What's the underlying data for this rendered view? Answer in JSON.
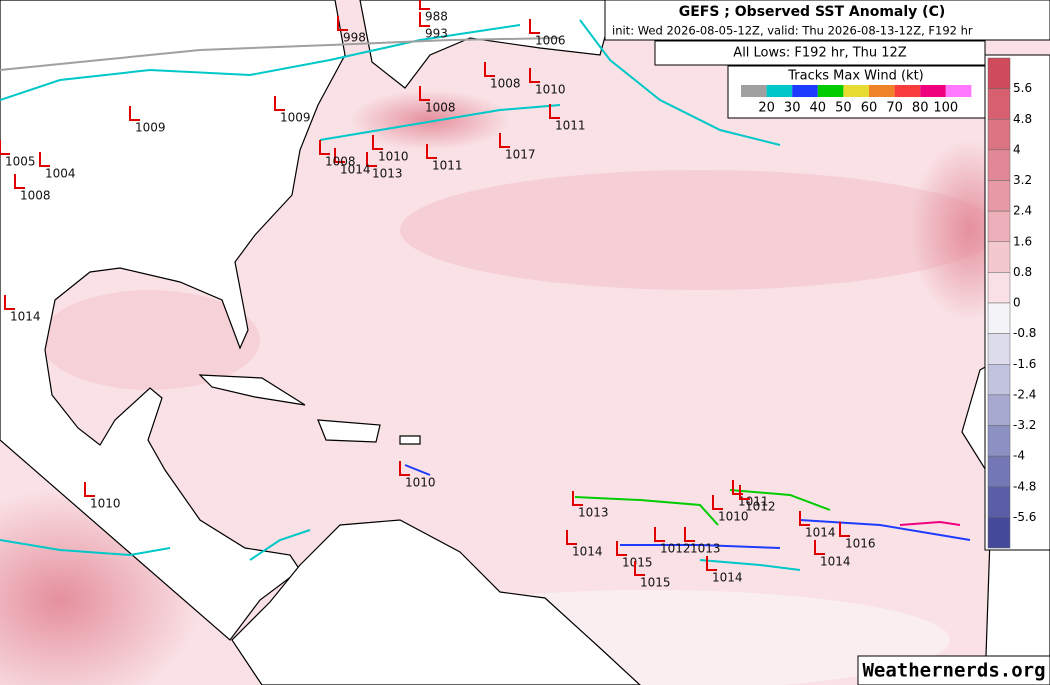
{
  "header": {
    "title": "GEFS ; Observed SST Anomaly (C)",
    "subtitle": "init: Wed 2026-08-05-12Z, valid: Thu 2026-08-13-12Z, F192 hr"
  },
  "lows_caption": "All Lows: F192 hr, Thu 12Z",
  "track_legend": {
    "title": "Tracks Max Wind (kt)",
    "swatches": [
      "#a0a0a0",
      "#00c8c8",
      "#1e3cff",
      "#00cc00",
      "#e6dc32",
      "#f08228",
      "#fa3c3c",
      "#f0007f",
      "#ff78ff"
    ],
    "labels": [
      "20",
      "30",
      "40",
      "50",
      "60",
      "70",
      "80",
      "100"
    ]
  },
  "colorbar": {
    "labels": [
      "5.6",
      "4.8",
      "4",
      "3.2",
      "2.4",
      "1.6",
      "0.8",
      "0",
      "-0.8",
      "-1.6",
      "-2.4",
      "-3.2",
      "-4",
      "-4.8",
      "-5.6"
    ],
    "colors": [
      "#cf4a5a",
      "#d6606f",
      "#dc7382",
      "#e28795",
      "#e79aa6",
      "#edb0ba",
      "#f3c8cf",
      "#f9e0e4",
      "#f4f4f8",
      "#dcdcec",
      "#c2c3df",
      "#a7a9d1",
      "#8d90c3",
      "#7377b5",
      "#5a5ea7",
      "#444a99"
    ]
  },
  "lows": [
    "988",
    "993",
    "998",
    "1006",
    "1008",
    "1010",
    "1011",
    "1008",
    "1009",
    "1009",
    "1017",
    "1010",
    "1011",
    "1013",
    "1014",
    "1008",
    "1005",
    "1004",
    "1008",
    "1014",
    "1010",
    "1010",
    "1013",
    "1014",
    "1015",
    "1015",
    "1012",
    "1013",
    "1014",
    "1010",
    "1011",
    "1012",
    "1014",
    "1016",
    "1014"
  ],
  "watermark": "Weathernerds.org"
}
